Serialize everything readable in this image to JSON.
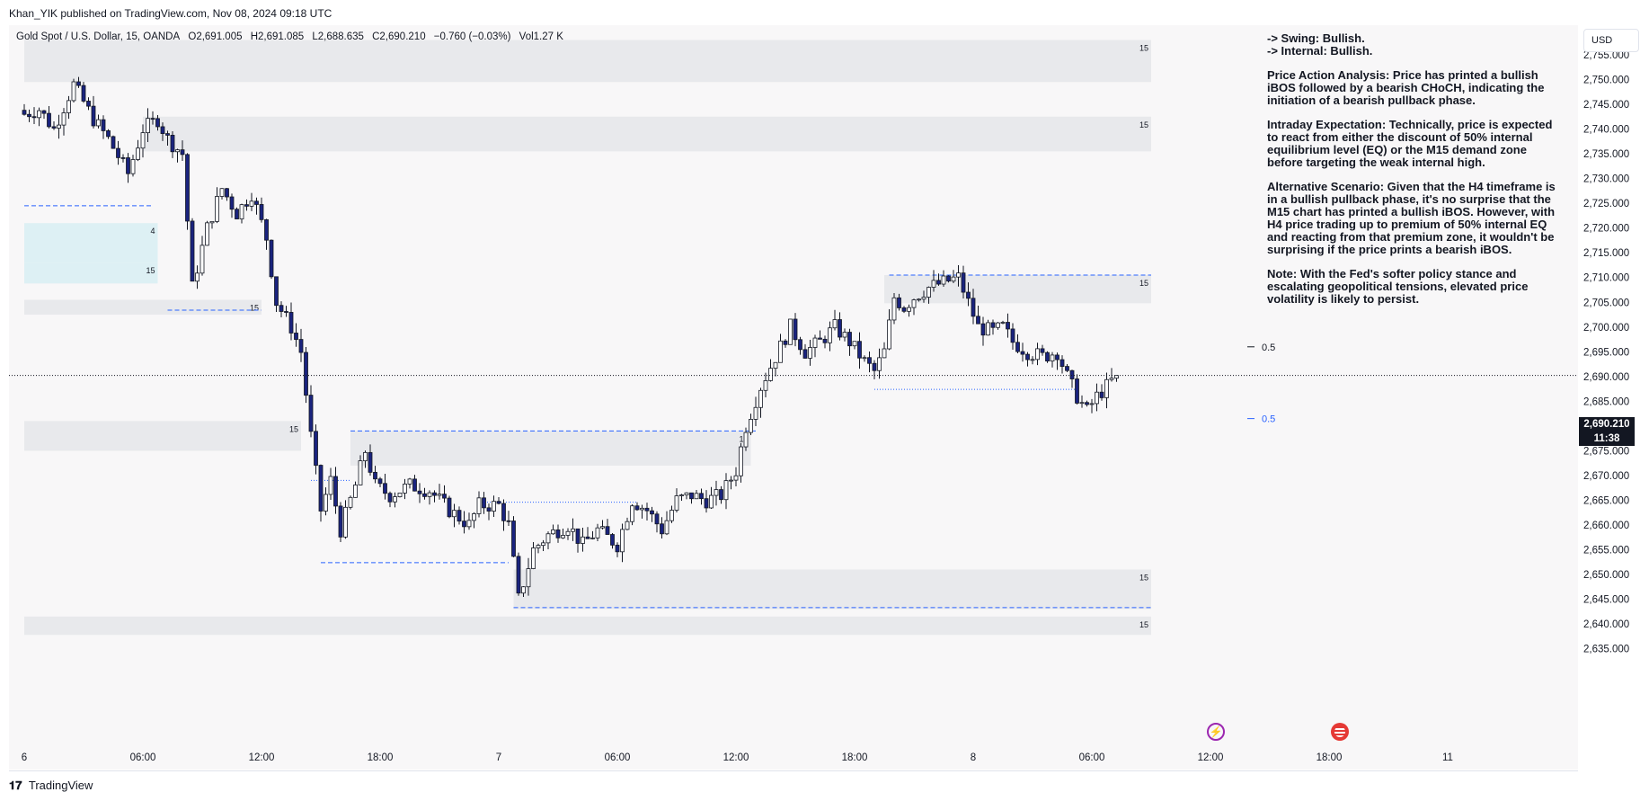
{
  "header": {
    "publisher": "Khan_YIK published on TradingView.com, Nov 08, 2024 09:18 UTC"
  },
  "legend": {
    "symbol": "Gold Spot / U.S. Dollar, 15, OANDA",
    "open": "O2,691.005",
    "high": "H2,691.085",
    "low": "L2,688.635",
    "close": "C2,690.210",
    "change": "−0.760 (−0.03%)",
    "volume": "Vol1.27 K"
  },
  "analysis": {
    "swing": "-> Swing:  Bullish.",
    "internal": "-> Internal:  Bullish.",
    "price_action": "Price Action Analysis: Price has printed a bullish iBOS followed by a bearish CHoCH, indicating the initiation of a bearish pullback phase.",
    "intraday": "Intraday Expectation: Technically, price is expected to react from either the discount of 50% internal equilibrium level (EQ) or the M15 demand zone before targeting the weak internal high.",
    "alternative": "Alternative Scenario: Given that the H4 timeframe is in a bullish pullback phase, it's no surprise that the M15 chart has printed a bullish iBOS. However, with H4 price trading up to premium of 50% internal EQ and reacting from that premium zone, it wouldn't be surprising if the price prints a bearish iBOS.",
    "note": "Note: With the Fed's softer policy stance and escalating geopolitical tensions, elevated price volatility is likely to persist."
  },
  "currency": "USD",
  "price_tag": {
    "price": "2,690.210",
    "countdown": "11:38"
  },
  "footer": {
    "brand": "TradingView",
    "logo": "tradingview-logo"
  },
  "colors": {
    "bull": "#ffffff",
    "bear": "#1a237e",
    "zone": "#e6e7ea",
    "blue_zone": "#d9eef3",
    "level": "#2962ff"
  },
  "chart_data": {
    "type": "candlestick",
    "title": "Gold Spot / U.S. Dollar, 15, OANDA",
    "ylim": [
      2632,
      2758
    ],
    "y_ticks": [
      2635,
      2640,
      2645,
      2650,
      2655,
      2660,
      2665,
      2670,
      2675,
      2680,
      2685,
      2690,
      2695,
      2700,
      2705,
      2710,
      2715,
      2720,
      2725,
      2730,
      2735,
      2740,
      2745,
      2750,
      2755
    ],
    "y_tick_labels": [
      "2,635.000",
      "2,640.000",
      "2,645.000",
      "2,650.000",
      "2,655.000",
      "2,660.000",
      "2,665.000",
      "2,670.000",
      "2,675.000",
      "2,680.000",
      "2,685.000",
      "2,690.000",
      "2,695.000",
      "2,700.000",
      "2,705.000",
      "2,710.000",
      "2,715.000",
      "2,720.000",
      "2,725.000",
      "2,730.000",
      "2,735.000",
      "2,740.000",
      "2,745.000",
      "2,750.000",
      "2,755.000"
    ],
    "x_ticks": [
      {
        "label": "6",
        "bar": 0
      },
      {
        "label": "06:00",
        "bar": 24
      },
      {
        "label": "12:00",
        "bar": 48
      },
      {
        "label": "18:00",
        "bar": 72
      },
      {
        "label": "7",
        "bar": 96
      },
      {
        "label": "06:00",
        "bar": 120
      },
      {
        "label": "12:00",
        "bar": 144
      },
      {
        "label": "18:00",
        "bar": 168
      },
      {
        "label": "8",
        "bar": 192
      },
      {
        "label": "06:00",
        "bar": 216
      },
      {
        "label": "12:00",
        "bar": 240
      },
      {
        "label": "18:00",
        "bar": 264
      },
      {
        "label": "11",
        "bar": 288
      }
    ],
    "anchors": [
      [
        0,
        2743
      ],
      [
        3,
        2744
      ],
      [
        6,
        2740
      ],
      [
        10,
        2749
      ],
      [
        14,
        2742
      ],
      [
        17,
        2738
      ],
      [
        21,
        2731
      ],
      [
        24,
        2740
      ],
      [
        27,
        2742
      ],
      [
        29,
        2738
      ],
      [
        32,
        2735
      ],
      [
        34,
        2708
      ],
      [
        37,
        2720
      ],
      [
        40,
        2728
      ],
      [
        43,
        2723
      ],
      [
        46,
        2727
      ],
      [
        49,
        2718
      ],
      [
        51,
        2705
      ],
      [
        54,
        2700
      ],
      [
        56,
        2695
      ],
      [
        58,
        2678
      ],
      [
        60,
        2663
      ],
      [
        62,
        2669
      ],
      [
        64,
        2659
      ],
      [
        67,
        2668
      ],
      [
        69,
        2675
      ],
      [
        71,
        2668
      ],
      [
        74,
        2666
      ],
      [
        78,
        2668
      ],
      [
        82,
        2667
      ],
      [
        86,
        2663
      ],
      [
        90,
        2660
      ],
      [
        92,
        2664
      ],
      [
        96,
        2664
      ],
      [
        98,
        2660
      ],
      [
        100,
        2645
      ],
      [
        103,
        2655
      ],
      [
        106,
        2658
      ],
      [
        110,
        2660
      ],
      [
        113,
        2656
      ],
      [
        116,
        2659
      ],
      [
        120,
        2656
      ],
      [
        123,
        2665
      ],
      [
        126,
        2663
      ],
      [
        129,
        2659
      ],
      [
        132,
        2665
      ],
      [
        135,
        2666
      ],
      [
        138,
        2665
      ],
      [
        141,
        2666
      ],
      [
        144,
        2671
      ],
      [
        146,
        2680
      ],
      [
        149,
        2688
      ],
      [
        152,
        2694
      ],
      [
        155,
        2700
      ],
      [
        158,
        2695
      ],
      [
        161,
        2697
      ],
      [
        164,
        2700
      ],
      [
        167,
        2697
      ],
      [
        170,
        2693
      ],
      [
        172,
        2691
      ],
      [
        174,
        2695
      ],
      [
        176,
        2706
      ],
      [
        178,
        2704
      ],
      [
        180,
        2706
      ],
      [
        183,
        2708
      ],
      [
        186,
        2709
      ],
      [
        189,
        2710
      ],
      [
        191,
        2705
      ],
      [
        193,
        2700
      ],
      [
        196,
        2699
      ],
      [
        198,
        2700
      ],
      [
        200,
        2697
      ],
      [
        203,
        2695
      ],
      [
        206,
        2694
      ],
      [
        209,
        2695
      ],
      [
        211,
        2690
      ],
      [
        213,
        2686
      ],
      [
        215,
        2683
      ],
      [
        217,
        2686
      ],
      [
        219,
        2688
      ],
      [
        221,
        2690.21
      ]
    ],
    "zones": [
      {
        "from_bar": 0,
        "to_bar": 228,
        "top": 2758,
        "bottom": 2749.5,
        "label": "15"
      },
      {
        "from_bar": 24,
        "to_bar": 228,
        "top": 2742.5,
        "bottom": 2735.5,
        "label": "15"
      },
      {
        "from_bar": 0,
        "to_bar": 27,
        "top": 2721,
        "bottom": 2713,
        "label": "4",
        "tint": "blue"
      },
      {
        "from_bar": 0,
        "to_bar": 27,
        "top": 2713,
        "bottom": 2708.8,
        "label": "15",
        "tint": "blue"
      },
      {
        "from_bar": 0,
        "to_bar": 48,
        "top": 2705.5,
        "bottom": 2702.5,
        "label": "15"
      },
      {
        "from_bar": 0,
        "to_bar": 56,
        "top": 2681,
        "bottom": 2675,
        "label": "15"
      },
      {
        "from_bar": 66,
        "to_bar": 147,
        "top": 2679,
        "bottom": 2672,
        "label": "15"
      },
      {
        "from_bar": 99,
        "to_bar": 228,
        "top": 2651,
        "bottom": 2643,
        "label": "15"
      },
      {
        "from_bar": 174,
        "to_bar": 228,
        "top": 2710.5,
        "bottom": 2704.8,
        "label": "15"
      },
      {
        "from_bar": 0,
        "to_bar": 228,
        "top": 2641.5,
        "bottom": 2637.8,
        "label": "15"
      }
    ],
    "levels": [
      {
        "price": 2724.5,
        "from_bar": 0,
        "to_bar": 26,
        "style": "dashed"
      },
      {
        "price": 2703.4,
        "from_bar": 29,
        "to_bar": 48,
        "style": "dashed"
      },
      {
        "price": 2679.0,
        "from_bar": 66,
        "to_bar": 148,
        "style": "dashed"
      },
      {
        "price": 2669.0,
        "from_bar": 58,
        "to_bar": 66,
        "style": "dotted"
      },
      {
        "price": 2664.6,
        "from_bar": 92,
        "to_bar": 124,
        "style": "dotted"
      },
      {
        "price": 2652.4,
        "from_bar": 60,
        "to_bar": 98,
        "style": "dashed"
      },
      {
        "price": 2643.3,
        "from_bar": 99,
        "to_bar": 228,
        "style": "dashed"
      },
      {
        "price": 2710.5,
        "from_bar": 175,
        "to_bar": 228,
        "style": "dashed"
      },
      {
        "price": 2687.4,
        "from_bar": 172,
        "to_bar": 213,
        "style": "dotted"
      }
    ],
    "eq_labels": [
      {
        "text": "0.5",
        "price": 2696.0,
        "color": "#131722"
      },
      {
        "text": "0.5",
        "price": 2681.5,
        "color": "#2962ff"
      }
    ],
    "last_price": 2690.21
  }
}
